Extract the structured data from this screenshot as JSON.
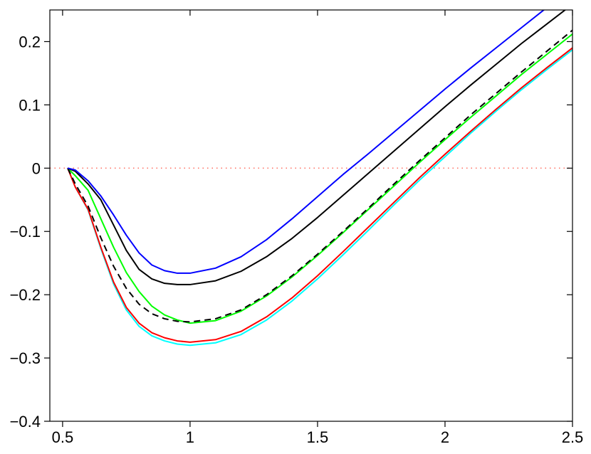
{
  "chart_data": {
    "type": "line",
    "x": [
      0.52,
      0.55,
      0.6,
      0.65,
      0.7,
      0.75,
      0.8,
      0.85,
      0.9,
      0.95,
      1.0,
      1.1,
      1.2,
      1.3,
      1.4,
      1.5,
      1.6,
      1.7,
      1.8,
      1.9,
      2.0,
      2.1,
      2.2,
      2.3,
      2.4,
      2.5
    ],
    "series": [
      {
        "color": "#00ffff",
        "values": [
          0,
          -0.03,
          -0.066,
          -0.127,
          -0.183,
          -0.224,
          -0.25,
          -0.265,
          -0.273,
          -0.278,
          -0.28,
          -0.276,
          -0.263,
          -0.24,
          -0.21,
          -0.175,
          -0.137,
          -0.098,
          -0.058,
          -0.019,
          0.018,
          0.055,
          0.09,
          0.124,
          0.156,
          0.187
        ]
      },
      {
        "color": "#ff0000",
        "values": [
          0,
          -0.03,
          -0.065,
          -0.125,
          -0.18,
          -0.22,
          -0.245,
          -0.26,
          -0.268,
          -0.273,
          -0.275,
          -0.271,
          -0.258,
          -0.235,
          -0.205,
          -0.17,
          -0.132,
          -0.093,
          -0.054,
          -0.015,
          0.022,
          0.058,
          0.093,
          0.127,
          0.159,
          0.19
        ]
      },
      {
        "color": "#00ff00",
        "values": [
          0,
          -0.012,
          -0.035,
          -0.08,
          -0.125,
          -0.165,
          -0.195,
          -0.218,
          -0.232,
          -0.24,
          -0.245,
          -0.241,
          -0.226,
          -0.202,
          -0.172,
          -0.138,
          -0.102,
          -0.065,
          -0.028,
          0.009,
          0.045,
          0.08,
          0.114,
          0.148,
          0.18,
          0.212
        ]
      },
      {
        "color": "#000000",
        "dashed": true,
        "values": [
          0,
          -0.025,
          -0.06,
          -0.11,
          -0.155,
          -0.19,
          -0.215,
          -0.23,
          -0.238,
          -0.242,
          -0.243,
          -0.238,
          -0.224,
          -0.2,
          -0.17,
          -0.136,
          -0.1,
          -0.063,
          -0.025,
          0.012,
          0.048,
          0.084,
          0.118,
          0.152,
          0.185,
          0.218
        ]
      },
      {
        "color": "#000000",
        "values": [
          0,
          -0.005,
          -0.025,
          -0.05,
          -0.09,
          -0.13,
          -0.16,
          -0.175,
          -0.182,
          -0.184,
          -0.184,
          -0.178,
          -0.163,
          -0.14,
          -0.111,
          -0.078,
          -0.043,
          -0.008,
          0.027,
          0.062,
          0.097,
          0.131,
          0.164,
          0.197,
          0.228,
          0.259
        ]
      },
      {
        "color": "#0000ff",
        "values": [
          0,
          -0.003,
          -0.02,
          -0.044,
          -0.074,
          -0.106,
          -0.134,
          -0.153,
          -0.162,
          -0.166,
          -0.166,
          -0.158,
          -0.14,
          -0.113,
          -0.08,
          -0.045,
          -0.01,
          0.023,
          0.057,
          0.091,
          0.125,
          0.158,
          0.19,
          0.222,
          0.254,
          0.285
        ]
      }
    ],
    "reference_line": {
      "value": 0,
      "color": "#ff6f61"
    },
    "xlim": [
      0.45,
      2.5
    ],
    "ylim": [
      -0.4,
      0.25
    ],
    "xticks": [
      0.5,
      1,
      1.5,
      2,
      2.5
    ],
    "yticks": [
      {
        "value": -0.4,
        "label": "−0.4"
      },
      {
        "value": -0.3,
        "label": "−0.3"
      },
      {
        "value": -0.2,
        "label": "−0.2"
      },
      {
        "value": -0.1,
        "label": "−0.1"
      },
      0,
      0.1,
      0.2
    ]
  }
}
